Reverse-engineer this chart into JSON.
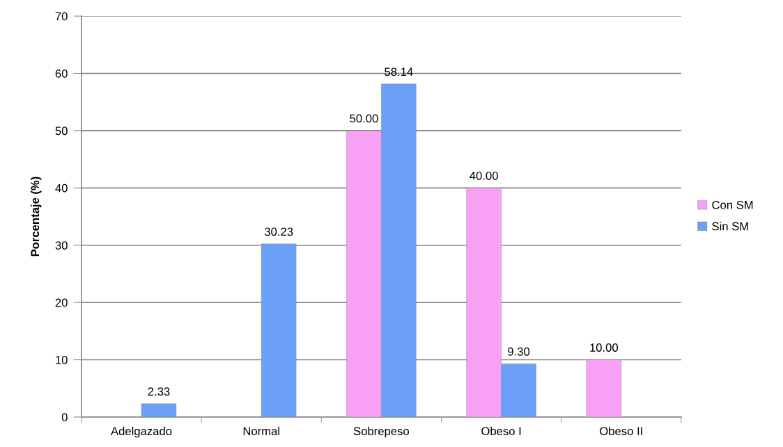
{
  "chart_data": {
    "type": "bar",
    "categories": [
      "Adelgazado",
      "Normal",
      "Sobrepeso",
      "Obeso I",
      "Obeso II"
    ],
    "ylabel": "Porcentaje (%)",
    "series": [
      {
        "name": "Con SM",
        "color": "#f8a0f6",
        "values": [
          null,
          null,
          50.0,
          40.0,
          10.0
        ],
        "value_labels": [
          null,
          null,
          "50.00",
          "40.00",
          "10.00"
        ]
      },
      {
        "name": "Sin SM",
        "color": "#6c9ff8",
        "values": [
          2.33,
          30.23,
          58.14,
          9.3,
          null
        ],
        "value_labels": [
          "2.33",
          "30.23",
          "58.14",
          "9.30",
          null
        ]
      }
    ],
    "ylim": [
      0,
      70
    ],
    "yticks": [
      0,
      10,
      20,
      30,
      40,
      50,
      60,
      70
    ],
    "grid": "y",
    "legend": "right"
  }
}
